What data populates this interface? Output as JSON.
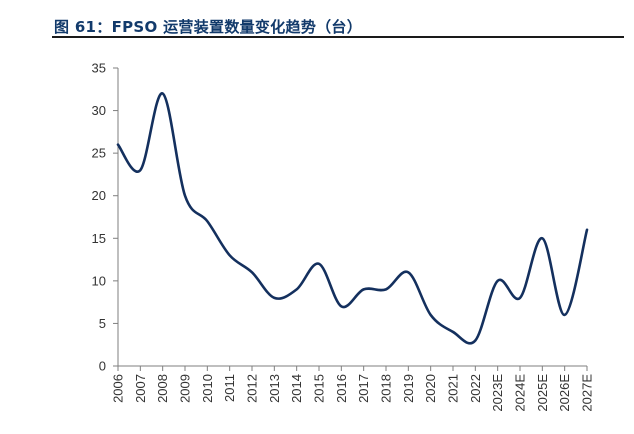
{
  "title": "图 61：FPSO 运营装置数量变化趋势（台）",
  "colors": {
    "line": "#14305e",
    "title": "#123a6b",
    "axis": "#7f7f7f",
    "text": "#333333"
  },
  "chart_data": {
    "type": "line",
    "title": "图 61：FPSO 运营装置数量变化趋势（台）",
    "xlabel": "",
    "ylabel": "",
    "ylim": [
      0,
      35
    ],
    "yticks": [
      0,
      5,
      10,
      15,
      20,
      25,
      30,
      35
    ],
    "grid": false,
    "legend": "none",
    "smooth": true,
    "categories": [
      "2006",
      "2007",
      "2008",
      "2009",
      "2010",
      "2011",
      "2012",
      "2013",
      "2014",
      "2015",
      "2016",
      "2017",
      "2018",
      "2019",
      "2020",
      "2021",
      "2022",
      "2023E",
      "2024E",
      "2025E",
      "2026E",
      "2027E"
    ],
    "series": [
      {
        "name": "FPSO运营装置数量",
        "values": [
          26,
          23,
          32,
          20,
          17,
          13,
          11,
          8,
          9,
          12,
          7,
          9,
          9,
          11,
          6,
          4,
          3,
          10,
          8,
          15,
          6,
          16
        ]
      }
    ]
  }
}
